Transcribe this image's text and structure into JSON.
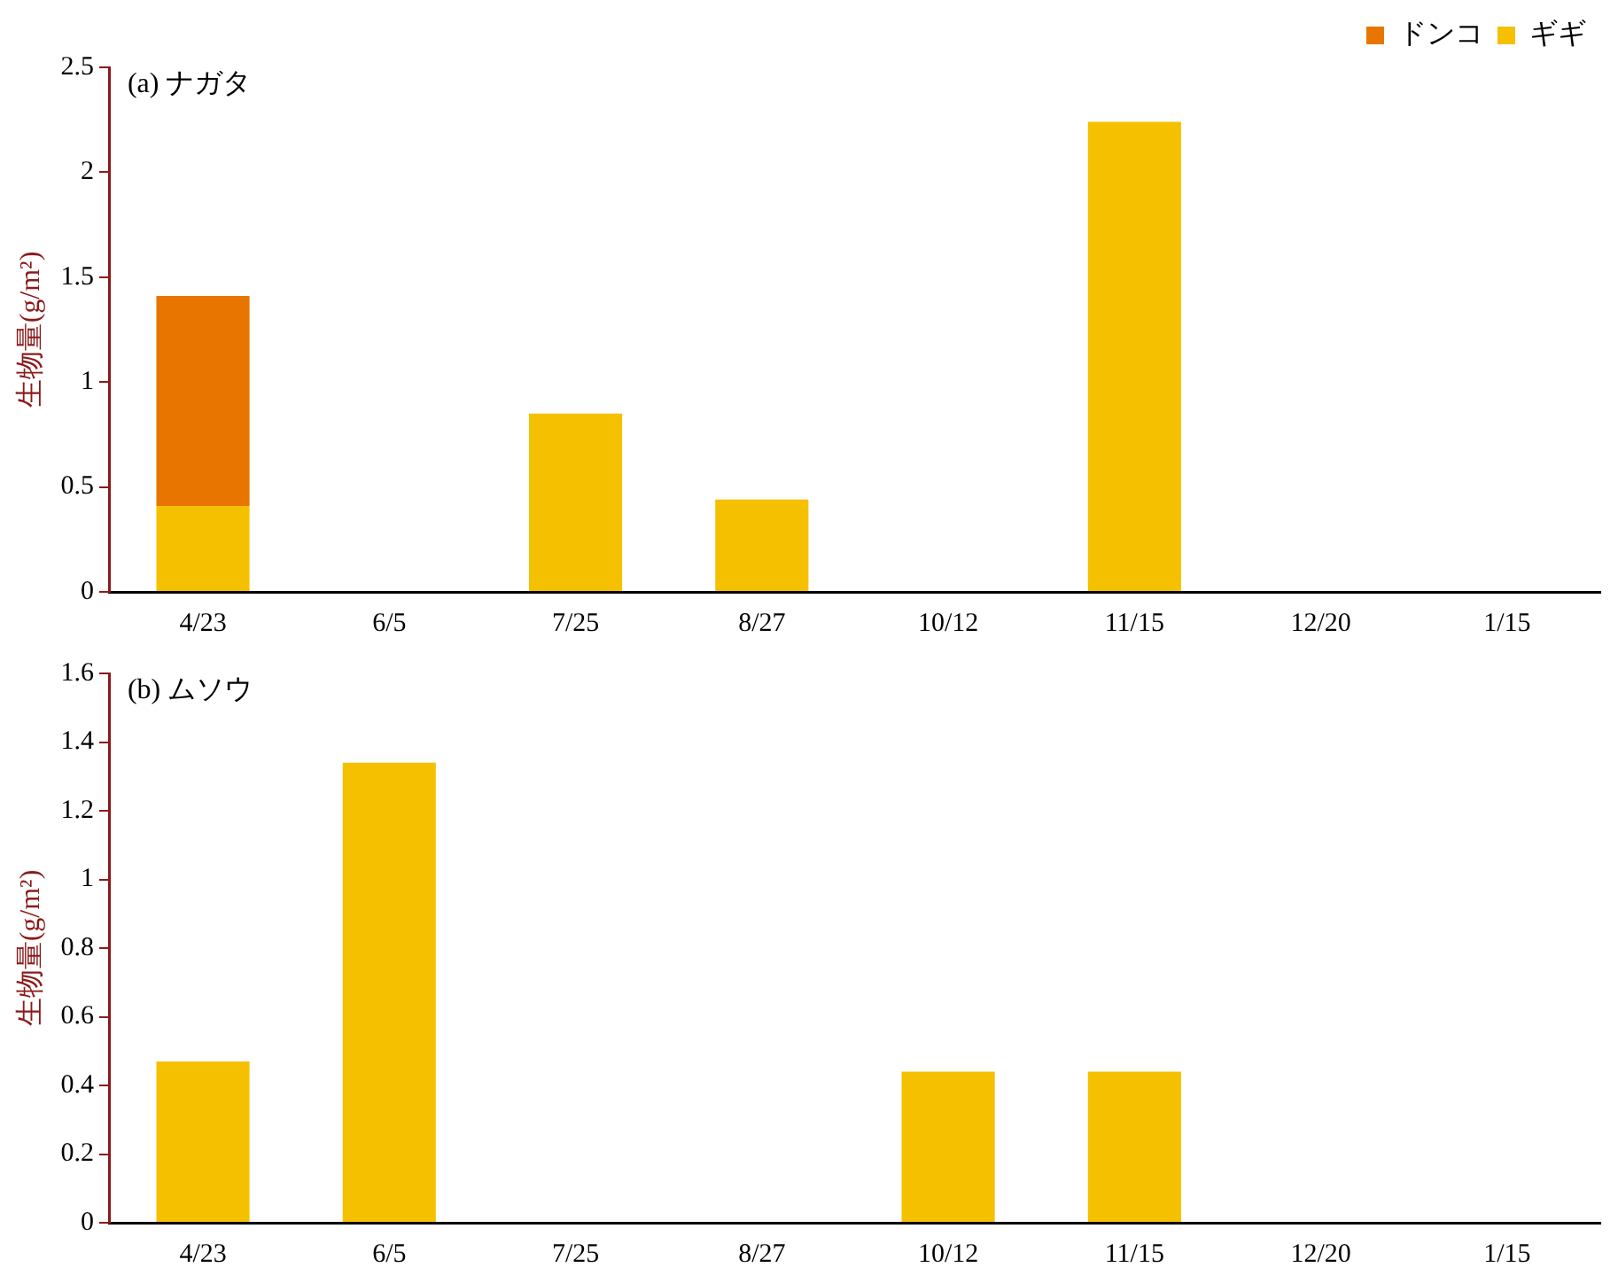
{
  "chart_data": [
    {
      "type": "bar",
      "title": "(a) ナガタ",
      "ylabel": "生物量(g/m²)",
      "categories": [
        "4/23",
        "6/5",
        "7/25",
        "8/27",
        "10/12",
        "11/15",
        "12/20",
        "1/15"
      ],
      "stacked": true,
      "series": [
        {
          "name": "ギギ",
          "color": "#f5c000",
          "values": [
            0.41,
            0,
            0.85,
            0.44,
            0,
            2.24,
            0,
            null
          ]
        },
        {
          "name": "ドンコ",
          "color": "#e87500",
          "values": [
            1.0,
            null,
            null,
            null,
            null,
            null,
            null,
            null
          ]
        }
      ],
      "ylim": [
        0,
        2.5
      ],
      "yticks": [
        0,
        0.5,
        1,
        1.5,
        2,
        2.5
      ],
      "grid": false,
      "legend": "top right"
    },
    {
      "type": "bar",
      "title": "(b) ムソウ",
      "ylabel": "生物量(g/m²)",
      "categories": [
        "4/23",
        "6/5",
        "7/25",
        "8/27",
        "10/12",
        "11/15",
        "12/20",
        "1/15"
      ],
      "series": [
        {
          "color": "#f5c000",
          "values": [
            0.47,
            1.34,
            0,
            0,
            0.44,
            0.44,
            0,
            null
          ]
        }
      ],
      "ylim": [
        0,
        1.6
      ],
      "yticks": [
        0,
        0.2,
        0.4,
        0.6,
        0.8,
        1,
        1.2,
        1.4,
        1.6
      ],
      "grid": false,
      "legend": false
    }
  ]
}
